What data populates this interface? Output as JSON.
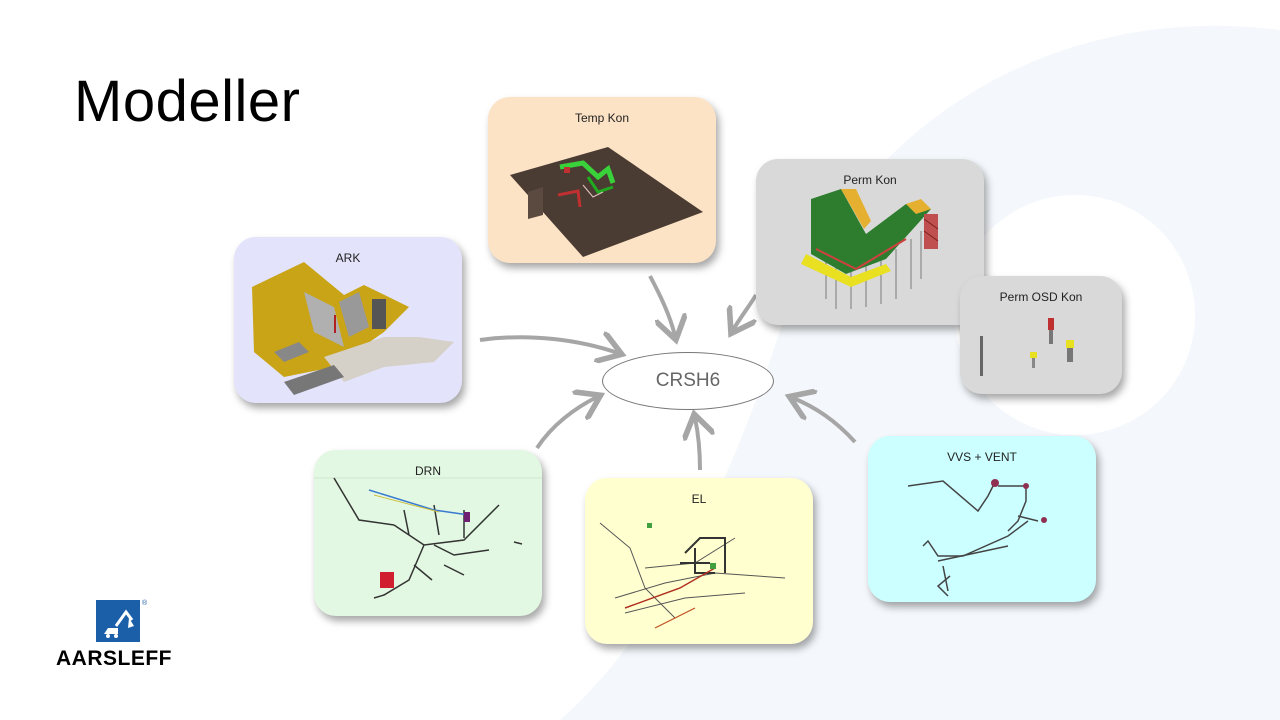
{
  "slide": {
    "title": "Modeller",
    "hub_label": "CRSH6"
  },
  "cards": {
    "temp_kon": "Temp Kon",
    "perm_kon": "Perm Kon",
    "perm_osd_kon": "Perm OSD Kon",
    "ark": "ARK",
    "drn": "DRN",
    "el": "EL",
    "vvs_vent": "VVS + VENT"
  },
  "logo": {
    "text": "AARSLEFF",
    "registered": "®"
  },
  "colors": {
    "brand_blue": "#1a5fa8",
    "temp_bg": "#fde3c6",
    "perm_bg": "#d9d9d9",
    "ark_bg": "#e3e3fb",
    "drn_bg": "#e2f8e2",
    "el_bg": "#ffffd0",
    "vvs_bg": "#ccffff",
    "arrow": "#a6a6a6"
  }
}
